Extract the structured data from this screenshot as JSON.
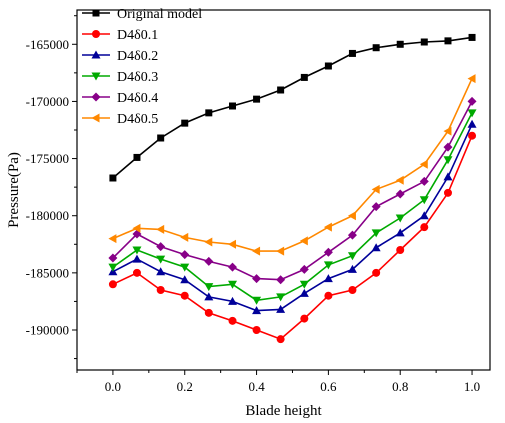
{
  "chart_data": {
    "type": "line",
    "title": "",
    "xlabel": "Blade height",
    "ylabel": "Pressure(Pa)",
    "xlim": [
      -0.1,
      1.05
    ],
    "ylim": [
      -193500,
      -162000
    ],
    "xticks": [
      0.0,
      0.2,
      0.4,
      0.6,
      0.8,
      1.0
    ],
    "xtick_labels": [
      "0.0",
      "0.2",
      "0.4",
      "0.6",
      "0.8",
      "1.0"
    ],
    "yticks": [
      -190000,
      -185000,
      -180000,
      -175000,
      -170000,
      -165000
    ],
    "ytick_labels": [
      "-190000",
      "-185000",
      "-180000",
      "-175000",
      "-170000",
      "-165000"
    ],
    "grid": false,
    "legend_position": "top-left",
    "x": [
      0.0,
      0.067,
      0.133,
      0.2,
      0.267,
      0.333,
      0.4,
      0.467,
      0.533,
      0.6,
      0.667,
      0.733,
      0.8,
      0.867,
      0.933,
      1.0
    ],
    "series": [
      {
        "name": "Original model",
        "color": "#000000",
        "marker": "square",
        "values": [
          -176700,
          -174900,
          -173200,
          -171900,
          -171000,
          -170400,
          -169800,
          -169000,
          -167900,
          -166900,
          -165800,
          -165300,
          -165000,
          -164800,
          -164700,
          -164400
        ]
      },
      {
        "name": "D4δ0.1",
        "color": "#ff0000",
        "marker": "circle",
        "values": [
          -186000,
          -185000,
          -186500,
          -187000,
          -188500,
          -189200,
          -190000,
          -190800,
          -189000,
          -187000,
          -186500,
          -185000,
          -183000,
          -181000,
          -178000,
          -173000
        ]
      },
      {
        "name": "D4δ0.2",
        "color": "#000099",
        "marker": "triangle-up",
        "values": [
          -184900,
          -183800,
          -184900,
          -185600,
          -187100,
          -187500,
          -188300,
          -188200,
          -186800,
          -185500,
          -184700,
          -182800,
          -181500,
          -180000,
          -176600,
          -172000
        ]
      },
      {
        "name": "D4δ0.3",
        "color": "#00aa00",
        "marker": "triangle-down",
        "values": [
          -184500,
          -183000,
          -183800,
          -184500,
          -186200,
          -186000,
          -187400,
          -187100,
          -186000,
          -184300,
          -183500,
          -181500,
          -180200,
          -178600,
          -175100,
          -171000
        ]
      },
      {
        "name": "D4δ0.4",
        "color": "#880088",
        "marker": "diamond",
        "values": [
          -183700,
          -181600,
          -182700,
          -183400,
          -184000,
          -184500,
          -185500,
          -185600,
          -184700,
          -183200,
          -181700,
          -179200,
          -178100,
          -177000,
          -174000,
          -170000
        ]
      },
      {
        "name": "D4δ0.5",
        "color": "#ff8800",
        "marker": "triangle-left",
        "values": [
          -182000,
          -181100,
          -181200,
          -181900,
          -182300,
          -182500,
          -183100,
          -183100,
          -182200,
          -181000,
          -180000,
          -177700,
          -176900,
          -175500,
          -172600,
          -168000
        ]
      }
    ]
  }
}
